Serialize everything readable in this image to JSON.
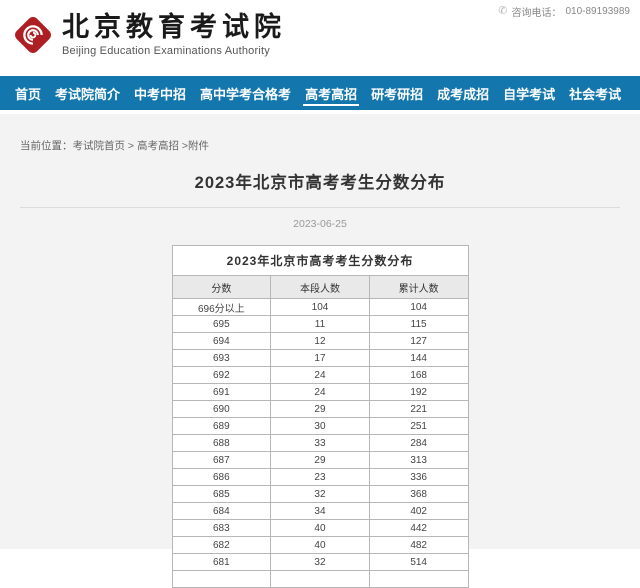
{
  "colors": {
    "nav_blue": "#1377ad",
    "logo_red": "#ae1f24",
    "panel_gray": "#f3f3f3",
    "table_border": "#b7b7b7"
  },
  "header": {
    "logo_title": "北京教育考试院",
    "logo_subtitle": "Beijing Education Examinations Authority",
    "phone_label": "咨询电话：",
    "phone_number": "010-89193989",
    "phone_icon": "✆"
  },
  "nav": {
    "items": [
      {
        "label": "首页",
        "active": false
      },
      {
        "label": "考试院简介",
        "active": false
      },
      {
        "label": "中考中招",
        "active": false
      },
      {
        "label": "高中学考合格考",
        "active": false
      },
      {
        "label": "高考高招",
        "active": true
      },
      {
        "label": "研考研招",
        "active": false
      },
      {
        "label": "成考成招",
        "active": false
      },
      {
        "label": "自学考试",
        "active": false
      },
      {
        "label": "社会考试",
        "active": false
      }
    ]
  },
  "breadcrumb": {
    "prefix": "当前位置：",
    "home": "考试院首页",
    "sep1": " > ",
    "section": "高考高招",
    "sep2": " >",
    "attachment": "附件"
  },
  "article": {
    "title": "2023年北京市高考考生分数分布",
    "date": "2023-06-25"
  },
  "table": {
    "caption": "2023年北京市高考考生分数分布",
    "headers": [
      "分数",
      "本段人数",
      "累计人数"
    ],
    "rows": [
      [
        "696分以上",
        "104",
        "104"
      ],
      [
        "695",
        "11",
        "115"
      ],
      [
        "694",
        "12",
        "127"
      ],
      [
        "693",
        "17",
        "144"
      ],
      [
        "692",
        "24",
        "168"
      ],
      [
        "691",
        "24",
        "192"
      ],
      [
        "690",
        "29",
        "221"
      ],
      [
        "689",
        "30",
        "251"
      ],
      [
        "688",
        "33",
        "284"
      ],
      [
        "687",
        "29",
        "313"
      ],
      [
        "686",
        "23",
        "336"
      ],
      [
        "685",
        "32",
        "368"
      ],
      [
        "684",
        "34",
        "402"
      ],
      [
        "683",
        "40",
        "442"
      ],
      [
        "682",
        "40",
        "482"
      ],
      [
        "681",
        "32",
        "514"
      ],
      [
        "",
        "",
        ""
      ]
    ]
  }
}
